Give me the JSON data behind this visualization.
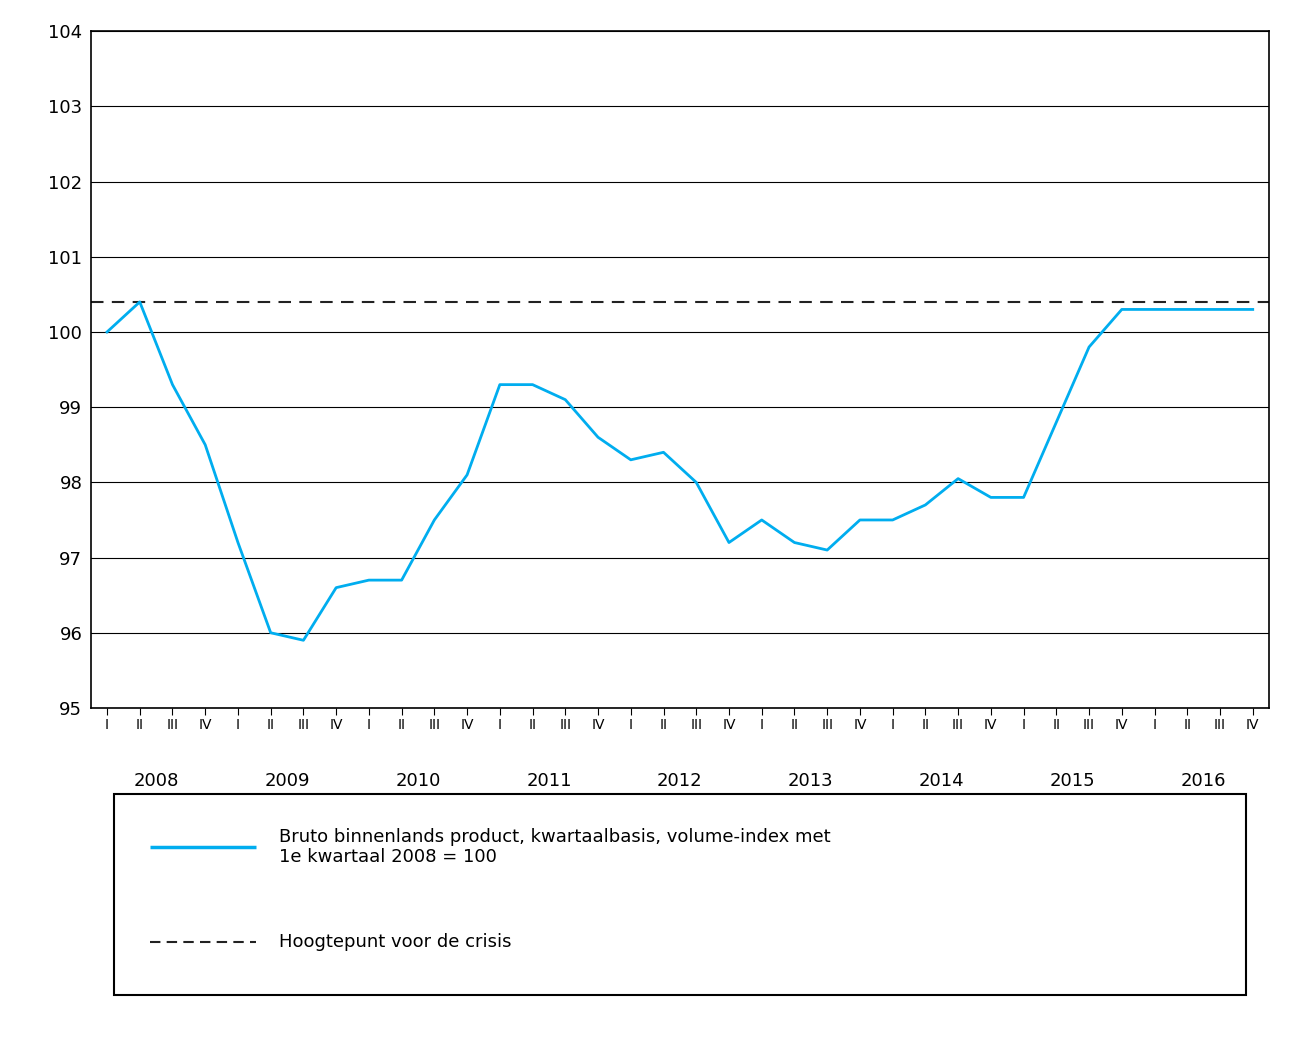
{
  "title": "",
  "line_color": "#00ADEF",
  "line_width": 2.0,
  "dashed_color": "#222222",
  "dashed_level": 100.4,
  "ylim": [
    95,
    104
  ],
  "yticks": [
    95,
    96,
    97,
    98,
    99,
    100,
    101,
    102,
    103,
    104
  ],
  "background_color": "#ffffff",
  "legend_line1": "Bruto binnenlands product, kwartaalbasis, volume-index met\n1e kwartaal 2008 = 100",
  "legend_line2": "Hoogtepunt voor de crisis",
  "years": [
    2008,
    2009,
    2010,
    2011,
    2012,
    2013,
    2014,
    2015,
    2016
  ],
  "values": [
    100.0,
    100.4,
    99.3,
    98.5,
    97.2,
    96.0,
    95.9,
    96.6,
    96.7,
    96.7,
    97.5,
    98.1,
    99.3,
    99.3,
    99.1,
    98.6,
    98.3,
    98.4,
    98.0,
    97.2,
    97.5,
    97.2,
    97.1,
    97.5,
    97.5,
    97.7,
    98.05,
    97.8,
    97.8,
    98.8,
    99.8,
    100.3,
    100.3,
    100.3,
    100.3,
    100.3
  ]
}
